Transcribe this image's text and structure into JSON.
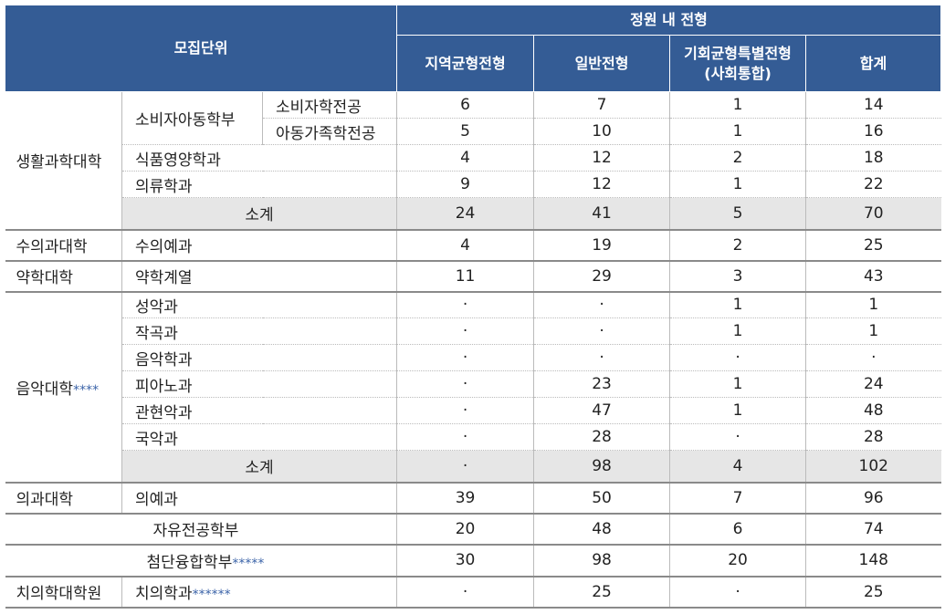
{
  "header": {
    "unit": "모집단위",
    "group": "정원 내 전형",
    "columns": [
      "지역균형전형",
      "일반전형",
      "기회균형특별전형\n(사회통합)",
      "합계"
    ]
  },
  "body": [
    {
      "college": "생활과학대학",
      "rows": [
        {
          "dept": "소비자아동학부",
          "major": "소비자학전공",
          "values": [
            6,
            7,
            1,
            14
          ]
        },
        {
          "major": "아동가족학전공",
          "values": [
            5,
            10,
            1,
            16
          ]
        },
        {
          "dept": "식품영양학과",
          "values": [
            4,
            12,
            2,
            18
          ]
        },
        {
          "dept": "의류학과",
          "values": [
            9,
            12,
            1,
            22
          ]
        }
      ],
      "subtotal": {
        "label": "소계",
        "values": [
          24,
          41,
          5,
          70
        ]
      }
    },
    {
      "college": "수의과대학",
      "rows": [
        {
          "dept": "수의예과",
          "values": [
            4,
            19,
            2,
            25
          ]
        }
      ]
    },
    {
      "college": "약학대학",
      "rows": [
        {
          "dept": "약학계열",
          "values": [
            11,
            29,
            3,
            43
          ]
        }
      ]
    },
    {
      "college": "음악대학",
      "note": "****",
      "rows": [
        {
          "dept": "성악과",
          "values": [
            "·",
            "·",
            1,
            1
          ]
        },
        {
          "dept": "작곡과",
          "values": [
            "·",
            "·",
            1,
            1
          ]
        },
        {
          "dept": "음악학과",
          "values": [
            "·",
            "·",
            "·",
            "·"
          ]
        },
        {
          "dept": "피아노과",
          "values": [
            "·",
            23,
            1,
            24
          ]
        },
        {
          "dept": "관현악과",
          "values": [
            "·",
            47,
            1,
            48
          ]
        },
        {
          "dept": "국악과",
          "values": [
            "·",
            28,
            "·",
            28
          ]
        }
      ],
      "subtotal": {
        "label": "소계",
        "values": [
          "·",
          98,
          4,
          102
        ]
      }
    },
    {
      "college": "의과대학",
      "rows": [
        {
          "dept": "의예과",
          "values": [
            39,
            50,
            7,
            96
          ]
        }
      ]
    },
    {
      "rows": [
        {
          "dept": "자유전공학부",
          "values": [
            20,
            48,
            6,
            74
          ]
        }
      ]
    },
    {
      "rows": [
        {
          "dept": "첨단융합학부",
          "note": "*****",
          "values": [
            30,
            98,
            20,
            148
          ]
        }
      ]
    },
    {
      "college": "치의학대학원",
      "rows": [
        {
          "dept": "치의학과",
          "note": "******",
          "values": [
            "·",
            25,
            "·",
            25
          ]
        }
      ]
    }
  ]
}
